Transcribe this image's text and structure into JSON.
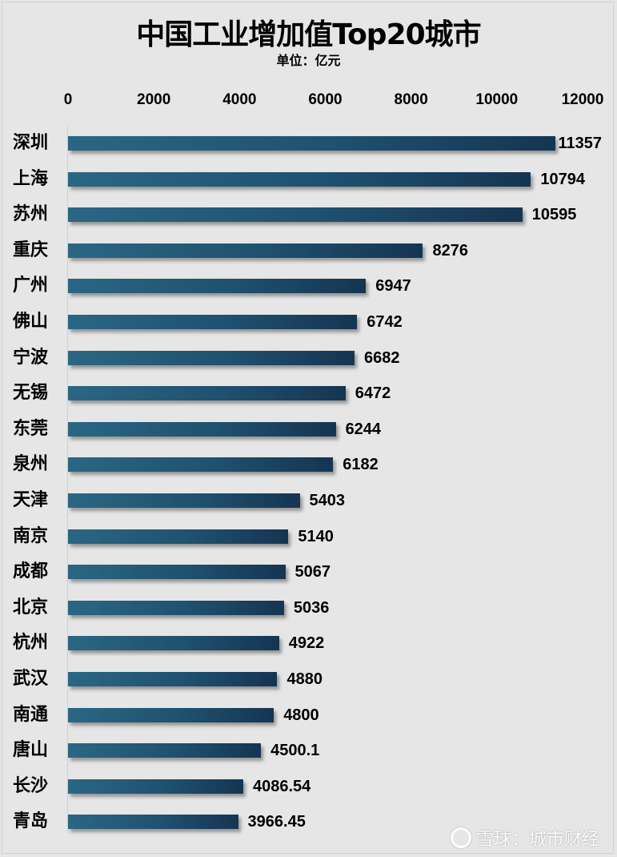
{
  "chart_data": {
    "type": "bar",
    "orientation": "horizontal",
    "title": "中国工业增加值Top20城市",
    "subtitle": "单位：亿元",
    "xlabel": "",
    "ylabel": "",
    "xlim": [
      0,
      12000
    ],
    "x_ticks": [
      "0",
      "2000",
      "4000",
      "6000",
      "8000",
      "10000",
      "12000"
    ],
    "tick_positions": [
      0,
      2000,
      4000,
      6000,
      8000,
      10000,
      12000
    ],
    "axis_position": "top",
    "grid": false,
    "legend": null,
    "categories": [
      "深圳",
      "上海",
      "苏州",
      "重庆",
      "广州",
      "佛山",
      "宁波",
      "无锡",
      "东莞",
      "泉州",
      "天津",
      "南京",
      "成都",
      "北京",
      "杭州",
      "武汉",
      "南通",
      "唐山",
      "长沙",
      "青岛"
    ],
    "values": [
      11357,
      10794,
      10595,
      8276,
      6947,
      6742,
      6682,
      6472,
      6244,
      6182,
      5403,
      5140,
      5067,
      5036,
      4922,
      4880,
      4800,
      4500.1,
      4086.54,
      3966.45
    ],
    "value_labels": [
      "11357",
      "10794",
      "10595",
      "8276",
      "6947",
      "6742",
      "6682",
      "6472",
      "6244",
      "6182",
      "5403",
      "5140",
      "5067",
      "5036",
      "4922",
      "4880",
      "4800",
      "4500.1",
      "4086.54",
      "3966.45"
    ],
    "bar_color": "#1f5170"
  },
  "watermark": {
    "text": "雪球：城市财经",
    "icon": "xueqiu-logo-icon"
  }
}
